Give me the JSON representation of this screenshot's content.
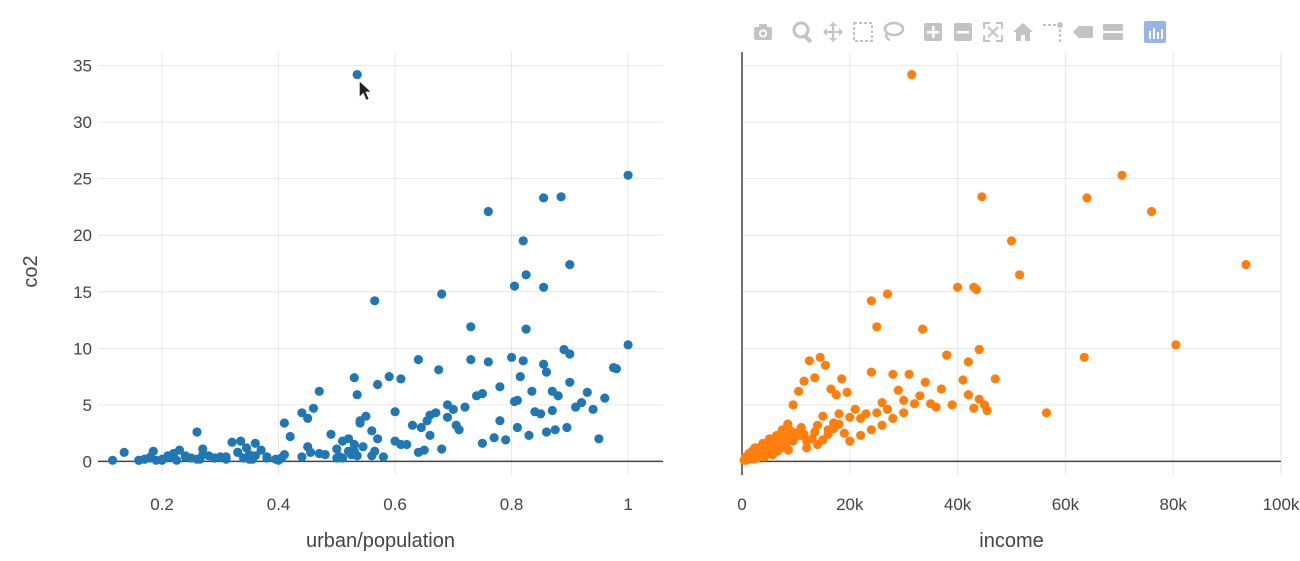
{
  "colors": {
    "series1": "#1f77b4",
    "series2": "#ff7f0e",
    "grid": "#e6e6e6",
    "zeroline": "#444444",
    "text": "#444444"
  },
  "modebar": {
    "buttons": [
      {
        "icon": "camera-icon"
      },
      {
        "icon": "zoom-icon"
      },
      {
        "icon": "pan-icon"
      },
      {
        "icon": "box-select-icon"
      },
      {
        "icon": "lasso-icon"
      },
      {
        "icon": "zoom-in-icon"
      },
      {
        "icon": "zoom-out-icon"
      },
      {
        "icon": "autoscale-icon"
      },
      {
        "icon": "home-icon"
      },
      {
        "icon": "spike-lines-icon"
      },
      {
        "icon": "hover-closest-icon"
      },
      {
        "icon": "hover-compare-icon"
      },
      {
        "icon": "plotly-logo-icon"
      }
    ]
  },
  "chart_data": [
    {
      "type": "scatter",
      "xlabel": "urban/population",
      "ylabel": "co2",
      "xlim": [
        0.09,
        1.06
      ],
      "ylim": [
        -1.2,
        36.2
      ],
      "xticks": [
        0.2,
        0.4,
        0.6,
        0.8,
        1
      ],
      "xtick_labels": [
        "0.2",
        "0.4",
        "0.6",
        "0.8",
        "1"
      ],
      "yticks": [
        0,
        5,
        10,
        15,
        20,
        25,
        30,
        35
      ],
      "ytick_labels": [
        "0",
        "5",
        "10",
        "15",
        "20",
        "25",
        "30",
        "35"
      ],
      "grid": true,
      "color": "#1f77b4",
      "x": [
        0.115,
        0.135,
        0.16,
        0.17,
        0.18,
        0.185,
        0.19,
        0.2,
        0.21,
        0.22,
        0.225,
        0.23,
        0.24,
        0.25,
        0.26,
        0.265,
        0.27,
        0.28,
        0.29,
        0.3,
        0.31,
        0.32,
        0.33,
        0.335,
        0.34,
        0.345,
        0.35,
        0.355,
        0.36,
        0.37,
        0.38,
        0.395,
        0.4,
        0.405,
        0.41,
        0.42,
        0.44,
        0.45,
        0.455,
        0.46,
        0.47,
        0.48,
        0.5,
        0.505,
        0.51,
        0.52,
        0.525,
        0.53,
        0.535,
        0.535,
        0.54,
        0.545,
        0.55,
        0.56,
        0.565,
        0.57,
        0.58,
        0.59,
        0.6,
        0.61,
        0.62,
        0.64,
        0.645,
        0.65,
        0.655,
        0.66,
        0.67,
        0.675,
        0.68,
        0.69,
        0.7,
        0.705,
        0.71,
        0.73,
        0.74,
        0.75,
        0.76,
        0.77,
        0.78,
        0.79,
        0.8,
        0.805,
        0.81,
        0.815,
        0.82,
        0.83,
        0.835,
        0.85,
        0.855,
        0.86,
        0.87,
        0.875,
        0.88,
        0.89,
        0.895,
        0.9,
        0.91,
        0.93,
        0.95,
        0.96,
        0.975,
        1.0,
        1.0,
        0.535,
        0.76,
        0.855,
        0.885,
        0.825,
        0.82,
        0.9,
        0.805,
        0.855,
        0.68,
        0.565,
        0.73,
        0.825,
        0.5,
        0.53,
        0.56,
        0.53,
        0.47,
        0.44,
        0.41,
        0.38,
        0.36,
        0.35,
        0.33,
        0.31,
        0.29,
        0.27,
        0.26,
        0.24,
        0.22,
        0.21,
        0.2,
        0.18,
        0.17,
        0.16,
        0.45,
        0.49,
        0.51,
        0.54,
        0.57,
        0.6,
        0.63,
        0.66,
        0.69,
        0.72,
        0.75,
        0.78,
        0.81,
        0.84,
        0.87,
        0.9,
        0.92,
        0.94,
        0.98,
        0.86,
        0.64,
        0.61,
        0.52
      ],
      "y": [
        0.1,
        0.8,
        0.1,
        0.2,
        0.4,
        0.9,
        0.1,
        0.2,
        0.5,
        0.3,
        0.1,
        1.0,
        0.4,
        0.3,
        2.6,
        0.2,
        1.1,
        0.5,
        0.3,
        0.4,
        0.2,
        1.7,
        0.8,
        1.8,
        0.3,
        1.2,
        0.6,
        0.2,
        1.6,
        1.0,
        0.4,
        0.2,
        0.1,
        0.3,
        3.4,
        2.2,
        4.3,
        1.3,
        0.8,
        4.7,
        6.2,
        0.6,
        1.1,
        0.4,
        0.3,
        2.0,
        0.6,
        7.4,
        5.9,
        0.5,
        3.6,
        1.3,
        4.0,
        2.7,
        0.9,
        6.8,
        0.4,
        7.5,
        1.8,
        7.3,
        1.5,
        9.0,
        3.0,
        1.0,
        3.6,
        2.3,
        4.3,
        8.1,
        1.1,
        5.0,
        4.6,
        3.2,
        2.8,
        9.0,
        5.8,
        1.6,
        8.8,
        2.1,
        6.6,
        1.9,
        9.2,
        5.3,
        3.0,
        7.5,
        8.9,
        2.3,
        6.2,
        4.2,
        8.6,
        2.6,
        4.5,
        2.8,
        5.8,
        9.9,
        3.0,
        9.5,
        4.8,
        6.1,
        2.0,
        5.6,
        8.3,
        25.3,
        10.3,
        34.2,
        22.1,
        23.3,
        23.4,
        16.5,
        19.5,
        17.4,
        15.5,
        15.4,
        14.8,
        14.2,
        11.9,
        11.7,
        0.3,
        0.9,
        0.5,
        1.5,
        0.7,
        0.4,
        0.6,
        0.3,
        0.5,
        0.2,
        0.8,
        0.4,
        0.3,
        0.6,
        0.2,
        0.5,
        0.7,
        0.4,
        0.1,
        0.3,
        0.2,
        0.1,
        3.8,
        2.4,
        1.8,
        3.4,
        2.0,
        4.4,
        3.2,
        4.1,
        3.9,
        4.8,
        6.0,
        3.6,
        5.4,
        4.4,
        6.2,
        7.0,
        5.2,
        4.6,
        8.2,
        7.9,
        0.8,
        1.5,
        0.9
      ]
    },
    {
      "type": "scatter",
      "xlabel": "income",
      "ylabel": "",
      "xlim": [
        0,
        100000
      ],
      "ylim": [
        -1.2,
        36.2
      ],
      "xticks": [
        0,
        20000,
        40000,
        60000,
        80000,
        100000
      ],
      "xtick_labels": [
        "0",
        "20k",
        "40k",
        "60k",
        "80k",
        "100k"
      ],
      "yticks": [
        0,
        5,
        10,
        15,
        20,
        25,
        30,
        35
      ],
      "grid": true,
      "color": "#ff7f0e",
      "x": [
        400,
        600,
        800,
        1000,
        1200,
        1400,
        1600,
        1800,
        2000,
        2200,
        2400,
        2600,
        2800,
        3000,
        3300,
        3600,
        3900,
        4200,
        4500,
        4800,
        5100,
        5400,
        5700,
        6000,
        6300,
        6600,
        7000,
        7400,
        7800,
        8200,
        8600,
        9000,
        9500,
        10000,
        10500,
        11000,
        11500,
        12000,
        13000,
        14000,
        15000,
        16000,
        17000,
        18000,
        19000,
        20000,
        21000,
        22000,
        23000,
        24000,
        25000,
        26000,
        27000,
        28000,
        29000,
        30000,
        31000,
        32000,
        33000,
        34000,
        35000,
        37000,
        38000,
        39000,
        41000,
        42000,
        43000,
        44000,
        45000,
        47000,
        31500,
        70500,
        64000,
        76000,
        44500,
        50000,
        51500,
        43500,
        40000,
        43000,
        93500,
        80500,
        24000,
        27000,
        33500,
        25000,
        38000,
        45500,
        63500,
        56500,
        1500,
        2500,
        3500,
        4500,
        5500,
        6500,
        7500,
        8500,
        9500,
        10500,
        11500,
        12500,
        13500,
        14500,
        15500,
        16500,
        17500,
        18500,
        19500,
        12000,
        14000,
        15000,
        16000,
        17000,
        18000,
        20000,
        22000,
        24000,
        26000,
        28000,
        30000,
        36000,
        42000,
        44000,
        9000,
        11000,
        13500,
        700,
        1300,
        1900,
        2900,
        3700,
        4400,
        5200,
        6200,
        7200,
        8300,
        9300
      ],
      "y": [
        0.1,
        0.2,
        0.1,
        0.3,
        0.2,
        0.5,
        0.3,
        0.8,
        0.4,
        0.2,
        1.2,
        0.6,
        0.3,
        1.0,
        0.5,
        0.8,
        1.6,
        0.4,
        1.2,
        0.7,
        2.0,
        1.0,
        0.6,
        1.4,
        2.2,
        0.9,
        1.8,
        1.2,
        2.5,
        1.6,
        1.0,
        2.7,
        1.8,
        2.2,
        2.6,
        3.0,
        2.4,
        1.8,
        2.0,
        3.2,
        4.0,
        2.8,
        3.4,
        4.2,
        2.5,
        3.9,
        4.6,
        3.8,
        4.2,
        7.9,
        4.3,
        5.2,
        4.6,
        7.7,
        6.3,
        5.4,
        7.7,
        5.1,
        5.8,
        7.0,
        5.1,
        6.4,
        9.4,
        5.0,
        7.2,
        8.8,
        4.7,
        9.9,
        5.0,
        7.3,
        34.2,
        25.3,
        23.3,
        22.1,
        23.4,
        19.5,
        16.5,
        15.2,
        15.4,
        15.4,
        17.4,
        10.3,
        14.2,
        14.8,
        11.7,
        11.9,
        9.4,
        4.5,
        9.2,
        4.3,
        0.6,
        0.9,
        1.3,
        1.6,
        1.9,
        2.3,
        2.8,
        3.3,
        5.0,
        6.2,
        7.1,
        8.9,
        7.4,
        9.2,
        8.5,
        6.4,
        5.9,
        7.3,
        6.1,
        1.2,
        1.5,
        1.9,
        2.4,
        2.9,
        3.3,
        1.8,
        2.3,
        2.8,
        3.2,
        3.8,
        4.3,
        4.8,
        5.9,
        5.5,
        2.0,
        2.3,
        2.6,
        0.4,
        0.7,
        0.9,
        1.0,
        1.3,
        1.5,
        1.7,
        1.9,
        2.1,
        2.3,
        2.6
      ]
    }
  ]
}
